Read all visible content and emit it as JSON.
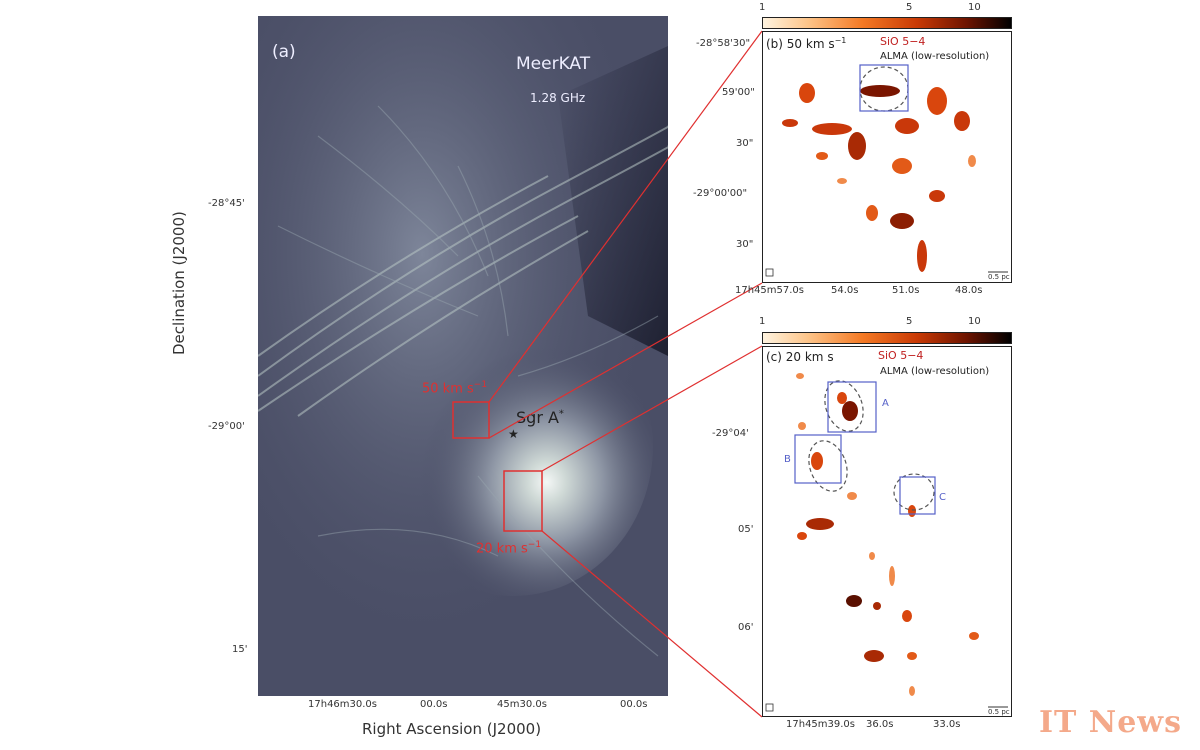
{
  "panel_a": {
    "label": "(a)",
    "telescope": "MeerKAT",
    "frequency": "1.28 GHz",
    "source_label": "Sgr A",
    "source_sup": "*",
    "box_50_label": "50 km s",
    "box_50_sup": "−1",
    "box_20_label": "20 km s",
    "box_20_sup": "−1",
    "y_axis_label": "Declination (J2000)",
    "x_axis_label": "Right Ascension (J2000)",
    "y_ticks": [
      "-28°45'",
      "-29°00'",
      "15'"
    ],
    "x_ticks": [
      "17h46m30.0s",
      "00.0s",
      "45m30.0s",
      "00.0s"
    ]
  },
  "colorbar": {
    "ticks": [
      "1",
      "5",
      "10"
    ]
  },
  "panel_b": {
    "label": "(b) 50 km s",
    "label_sup": "−1",
    "line": "SiO 5−4",
    "instrument": "ALMA (low-resolution)",
    "y_ticks": [
      "-28°58'30\"",
      "59'00\"",
      "30\"",
      "-29°00'00\"",
      "30\""
    ],
    "x_ticks": [
      "17h45m57.0s",
      "54.0s",
      "51.0s",
      "48.0s"
    ],
    "scale": "0.5 pc"
  },
  "panel_c": {
    "label": "(c) 20 km s",
    "line": "SiO 5−4",
    "instrument": "ALMA (low-resolution)",
    "y_ticks": [
      "-29°04'",
      "05'",
      "06'"
    ],
    "x_ticks": [
      "17h45m39.0s",
      "36.0s",
      "33.0s"
    ],
    "scale": "0.5 pc",
    "regions": [
      "A",
      "B",
      "C"
    ]
  },
  "watermark": "IT News",
  "colors": {
    "zoom_box": "#e03030",
    "region_box": "#5560c8",
    "radio_bg": "#4a4e66"
  }
}
